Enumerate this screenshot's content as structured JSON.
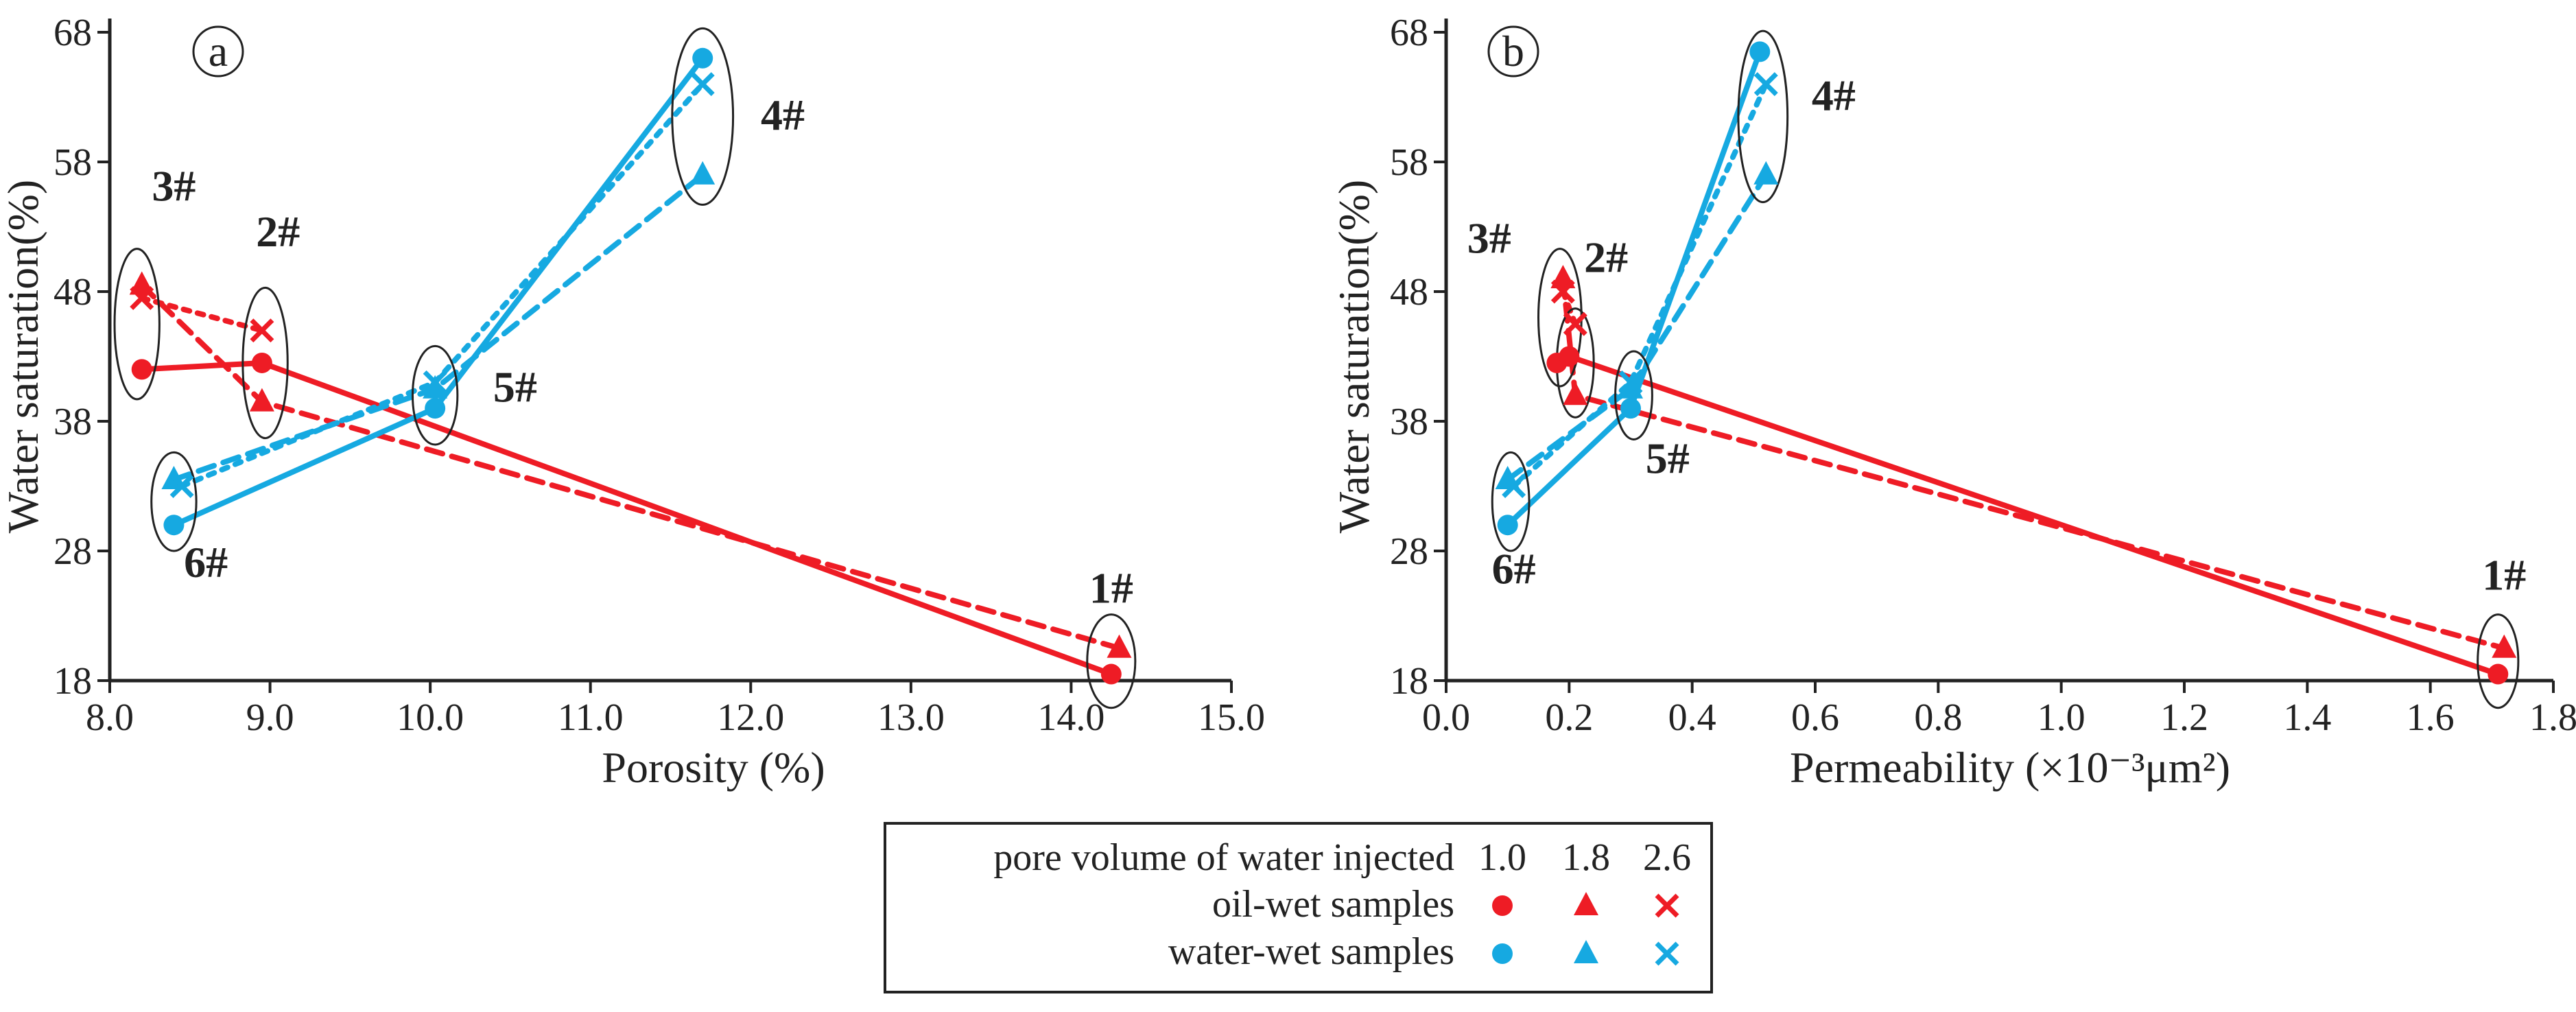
{
  "colors": {
    "oil": "#ee1c25",
    "water": "#16a9e1",
    "axis": "#222222"
  },
  "chart_data": [
    {
      "type": "line",
      "panel": "a",
      "xlabel": "Porosity (%)",
      "ylabel": "Water saturation(%)",
      "xlim": [
        8.0,
        15.0
      ],
      "ylim": [
        18,
        68
      ],
      "xticks": [
        "8.0",
        "9.0",
        "10.0",
        "11.0",
        "12.0",
        "13.0",
        "14.0",
        "15.0"
      ],
      "yticks": [
        "18",
        "28",
        "38",
        "48",
        "58",
        "68"
      ],
      "series": [
        {
          "name": "oil-wet samples 1.0",
          "group": "oil",
          "marker": "circle",
          "dash": "solid",
          "x": [
            8.2,
            8.95,
            14.25
          ],
          "y": [
            42.0,
            42.5,
            18.5
          ]
        },
        {
          "name": "oil-wet samples 1.8",
          "group": "oil",
          "marker": "triangle",
          "dash": "dashed",
          "x": [
            8.2,
            8.95,
            14.3
          ],
          "y": [
            48.5,
            39.5,
            20.5
          ]
        },
        {
          "name": "oil-wet samples 2.6",
          "group": "oil",
          "marker": "cross",
          "dash": "dotted",
          "x": [
            8.2,
            8.95
          ],
          "y": [
            47.5,
            45.0
          ]
        },
        {
          "name": "water-wet samples 1.0",
          "group": "water",
          "marker": "circle",
          "dash": "solid",
          "x": [
            8.4,
            10.03,
            11.7
          ],
          "y": [
            30.0,
            39.0,
            66.0
          ]
        },
        {
          "name": "water-wet samples 1.8",
          "group": "water",
          "marker": "triangle",
          "dash": "dashed",
          "x": [
            8.4,
            10.03,
            11.7
          ],
          "y": [
            33.5,
            40.5,
            57.0
          ]
        },
        {
          "name": "water-wet samples 2.6",
          "group": "water",
          "marker": "cross",
          "dash": "dotted",
          "x": [
            8.45,
            10.03,
            11.7
          ],
          "y": [
            33.0,
            41.0,
            64.0
          ]
        }
      ],
      "annotations": [
        {
          "text": "1#",
          "x": 14.25,
          "y": 24.0
        },
        {
          "text": "2#",
          "x": 9.05,
          "y": 51.5
        },
        {
          "text": "3#",
          "x": 8.4,
          "y": 55.0
        },
        {
          "text": "4#",
          "x": 12.2,
          "y": 60.5
        },
        {
          "text": "5#",
          "x": 10.53,
          "y": 39.5
        },
        {
          "text": "6#",
          "x": 8.6,
          "y": 26.0
        }
      ],
      "ellipses": [
        {
          "x": 14.25,
          "y": 19.5,
          "rx": 0.15,
          "ry": 3.6
        },
        {
          "x": 8.97,
          "y": 42.5,
          "rx": 0.14,
          "ry": 5.8
        },
        {
          "x": 8.17,
          "y": 45.5,
          "rx": 0.14,
          "ry": 5.8
        },
        {
          "x": 11.7,
          "y": 61.5,
          "rx": 0.19,
          "ry": 6.8
        },
        {
          "x": 10.03,
          "y": 40.0,
          "rx": 0.14,
          "ry": 3.8
        },
        {
          "x": 8.4,
          "y": 31.8,
          "rx": 0.14,
          "ry": 3.8
        }
      ]
    },
    {
      "type": "line",
      "panel": "b",
      "xlabel": "Permeability",
      "xlabel_unit": "(×10⁻³μm²)",
      "ylabel": "Water saturation(%)",
      "xlim": [
        0.0,
        1.8
      ],
      "ylim": [
        18,
        68
      ],
      "xticks": [
        "0.0",
        "0.2",
        "0.4",
        "0.6",
        "0.8",
        "1.0",
        "1.2",
        "1.4",
        "1.6",
        "1.8"
      ],
      "yticks": [
        "18",
        "28",
        "38",
        "48",
        "58",
        "68"
      ],
      "series": [
        {
          "name": "oil-wet samples 1.0",
          "group": "oil",
          "marker": "circle",
          "dash": "solid",
          "x": [
            0.18,
            0.2,
            1.71
          ],
          "y": [
            42.5,
            43.0,
            18.5
          ]
        },
        {
          "name": "oil-wet samples 1.8",
          "group": "oil",
          "marker": "triangle",
          "dash": "dashed",
          "x": [
            0.19,
            0.21,
            1.72
          ],
          "y": [
            49.0,
            40.0,
            20.5
          ]
        },
        {
          "name": "oil-wet samples 2.6",
          "group": "oil",
          "marker": "cross",
          "dash": "dotted",
          "x": [
            0.19,
            0.21
          ],
          "y": [
            48.0,
            45.5
          ]
        },
        {
          "name": "water-wet samples 1.0",
          "group": "water",
          "marker": "circle",
          "dash": "solid",
          "x": [
            0.1,
            0.3,
            0.51
          ],
          "y": [
            30.0,
            39.0,
            66.5
          ]
        },
        {
          "name": "water-wet samples 1.8",
          "group": "water",
          "marker": "triangle",
          "dash": "dashed",
          "x": [
            0.1,
            0.3,
            0.52
          ],
          "y": [
            33.5,
            40.5,
            57.0
          ]
        },
        {
          "name": "water-wet samples 2.6",
          "group": "water",
          "marker": "cross",
          "dash": "dotted",
          "x": [
            0.11,
            0.3,
            0.52
          ],
          "y": [
            33.0,
            41.0,
            64.0
          ]
        }
      ],
      "annotations": [
        {
          "text": "3#",
          "x": 0.07,
          "y": 51.0
        },
        {
          "text": "2#",
          "x": 0.26,
          "y": 49.5
        },
        {
          "text": "4#",
          "x": 0.63,
          "y": 62.0
        },
        {
          "text": "5#",
          "x": 0.36,
          "y": 34.0
        },
        {
          "text": "6#",
          "x": 0.11,
          "y": 25.5
        },
        {
          "text": "1#",
          "x": 1.72,
          "y": 25.0
        }
      ],
      "ellipses": [
        {
          "x": 1.71,
          "y": 19.5,
          "rx": 0.033,
          "ry": 3.6
        },
        {
          "x": 0.185,
          "y": 46.0,
          "rx": 0.035,
          "ry": 5.3
        },
        {
          "x": 0.21,
          "y": 42.5,
          "rx": 0.03,
          "ry": 4.2
        },
        {
          "x": 0.515,
          "y": 61.5,
          "rx": 0.04,
          "ry": 6.6
        },
        {
          "x": 0.305,
          "y": 40.0,
          "rx": 0.03,
          "ry": 3.4
        },
        {
          "x": 0.105,
          "y": 31.8,
          "rx": 0.03,
          "ry": 3.8
        }
      ]
    }
  ],
  "legend": {
    "header": "pore volume of water injected",
    "columns": [
      "1.0",
      "1.8",
      "2.6"
    ],
    "rows": [
      {
        "label": "oil-wet samples",
        "group": "oil"
      },
      {
        "label": "water-wet samples",
        "group": "water"
      }
    ]
  }
}
